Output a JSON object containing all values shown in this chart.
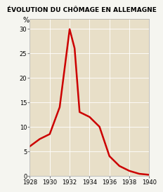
{
  "title": "ÉVOLUTION DU CHÔMAGE EN ALLEMAGNE",
  "ylabel": "%",
  "plot_bg_color": "#e8dfc8",
  "fig_bg_color": "#f5f5f0",
  "line_color": "#cc0000",
  "line_width": 1.8,
  "xlim": [
    1928,
    1940
  ],
  "ylim": [
    0,
    32
  ],
  "xticks": [
    1928,
    1930,
    1932,
    1934,
    1936,
    1938,
    1940
  ],
  "yticks": [
    0,
    5,
    10,
    15,
    20,
    25,
    30
  ],
  "years": [
    1928,
    1929,
    1930,
    1931,
    1932,
    1932.5,
    1933,
    1934,
    1935,
    1936,
    1937,
    1938,
    1939,
    1939.5,
    1940
  ],
  "values": [
    6,
    7.5,
    8.5,
    14,
    29.9,
    26,
    13,
    12,
    10,
    4,
    2,
    1,
    0.4,
    0.3,
    0.2
  ]
}
